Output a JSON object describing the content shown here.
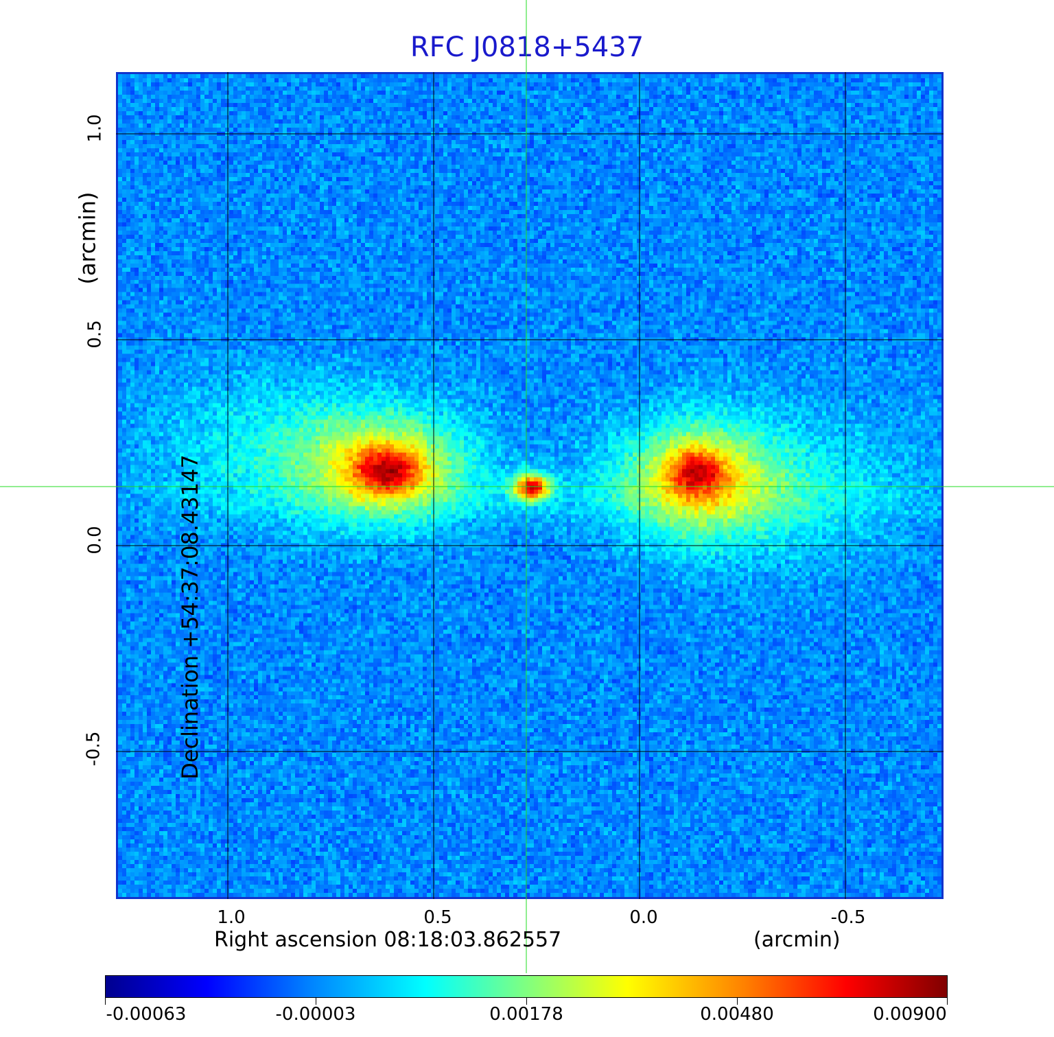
{
  "title": "RFC J0818+5437",
  "x_axis": {
    "label": "Right ascension  08:18:03.862557",
    "unit": "(arcmin)",
    "ticks": [
      "1.0",
      "0.5",
      "0.0",
      "-0.5"
    ]
  },
  "y_axis": {
    "label": "Declination  +54:37:08.43147",
    "unit": "(arcmin)",
    "ticks": [
      "1.0",
      "0.5",
      "0.0",
      "-0.5"
    ]
  },
  "colorbar": {
    "ticks": [
      "-0.00063",
      "-0.00003",
      "0.00178",
      "0.00480",
      "0.00900"
    ],
    "colormap": "jet"
  },
  "colors": {
    "title": "#1a1acc",
    "frame": "#1133cc",
    "crosshair": "#22dd22"
  }
}
